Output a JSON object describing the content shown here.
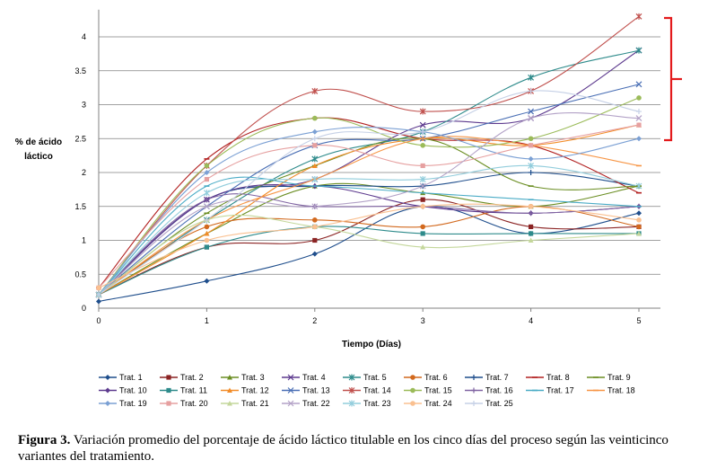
{
  "chart_data": {
    "type": "line",
    "x": [
      0,
      1,
      2,
      3,
      4,
      5
    ],
    "xlabel": "Tiempo (Días)",
    "ylabel_lines": [
      "% de ácido",
      "láctico"
    ],
    "xlim": [
      0,
      5.2
    ],
    "ylim": [
      0,
      4.4
    ],
    "yticks": [
      0,
      0.5,
      1,
      1.5,
      2,
      2.5,
      3,
      3.5,
      4
    ],
    "ytick_labels": [
      "0",
      "0.5",
      "1",
      "1.5",
      "2",
      "2.5",
      "3",
      "3.5",
      "4"
    ],
    "xtick_labels": [
      "0",
      "1",
      "2",
      "3",
      "4",
      "5"
    ],
    "grid": "horizontal",
    "legend_position": "bottom",
    "annotation": "bracket",
    "series": [
      {
        "name": "Trat. 1",
        "color": "#1F4E8C",
        "marker": "diamond",
        "values": [
          0.1,
          0.4,
          0.8,
          1.5,
          1.1,
          1.4
        ]
      },
      {
        "name": "Trat. 2",
        "color": "#8B2323",
        "marker": "square",
        "values": [
          0.2,
          0.9,
          1.0,
          1.6,
          1.2,
          1.2
        ]
      },
      {
        "name": "Trat. 3",
        "color": "#6B8E23",
        "marker": "triangle",
        "values": [
          0.2,
          1.1,
          1.8,
          1.7,
          1.5,
          1.8
        ]
      },
      {
        "name": "Trat. 4",
        "color": "#5D3A8E",
        "marker": "x",
        "values": [
          0.2,
          1.6,
          1.9,
          2.7,
          2.8,
          3.8
        ]
      },
      {
        "name": "Trat. 5",
        "color": "#2E8B8B",
        "marker": "star",
        "values": [
          0.2,
          1.3,
          2.2,
          2.6,
          3.4,
          3.8
        ]
      },
      {
        "name": "Trat. 6",
        "color": "#D2691E",
        "marker": "circle",
        "values": [
          0.2,
          1.2,
          1.3,
          1.2,
          1.5,
          1.2
        ]
      },
      {
        "name": "Trat. 7",
        "color": "#1F4E8C",
        "marker": "plus",
        "values": [
          0.2,
          1.6,
          1.8,
          1.8,
          2.0,
          1.8
        ]
      },
      {
        "name": "Trat. 8",
        "color": "#B22222",
        "marker": "dash",
        "values": [
          0.3,
          2.2,
          2.8,
          2.5,
          2.4,
          1.7
        ]
      },
      {
        "name": "Trat. 9",
        "color": "#6B8E23",
        "marker": "dash",
        "values": [
          0.2,
          1.4,
          2.1,
          2.5,
          1.8,
          1.8
        ]
      },
      {
        "name": "Trat. 10",
        "color": "#5D3A8E",
        "marker": "diamond",
        "values": [
          0.2,
          1.6,
          1.8,
          1.5,
          1.4,
          1.5
        ]
      },
      {
        "name": "Trat. 11",
        "color": "#2E8B8B",
        "marker": "square",
        "values": [
          0.2,
          0.9,
          1.2,
          1.1,
          1.1,
          1.1
        ]
      },
      {
        "name": "Trat. 12",
        "color": "#F28C28",
        "marker": "triangle",
        "values": [
          0.2,
          1.1,
          2.1,
          2.5,
          2.4,
          2.7
        ]
      },
      {
        "name": "Trat. 13",
        "color": "#4A6FB5",
        "marker": "x",
        "values": [
          0.2,
          1.5,
          2.4,
          2.5,
          2.9,
          3.3
        ]
      },
      {
        "name": "Trat. 14",
        "color": "#C0504D",
        "marker": "star",
        "values": [
          0.2,
          2.1,
          3.2,
          2.9,
          3.2,
          4.3
        ]
      },
      {
        "name": "Trat. 15",
        "color": "#9BBB59",
        "marker": "circle",
        "values": [
          0.2,
          2.1,
          2.8,
          2.4,
          2.5,
          3.1
        ]
      },
      {
        "name": "Trat. 16",
        "color": "#8064A2",
        "marker": "plus",
        "values": [
          0.2,
          1.6,
          1.5,
          1.5,
          1.4,
          1.5
        ]
      },
      {
        "name": "Trat. 17",
        "color": "#4BACC6",
        "marker": "dash",
        "values": [
          0.2,
          1.8,
          1.8,
          1.7,
          1.6,
          1.5
        ]
      },
      {
        "name": "Trat. 18",
        "color": "#F79646",
        "marker": "dash",
        "values": [
          0.2,
          1.3,
          1.9,
          2.5,
          2.4,
          2.1
        ]
      },
      {
        "name": "Trat. 19",
        "color": "#7BA0D4",
        "marker": "diamond",
        "values": [
          0.2,
          2.0,
          2.6,
          2.6,
          2.2,
          2.5
        ]
      },
      {
        "name": "Trat. 20",
        "color": "#E6A0A0",
        "marker": "square",
        "values": [
          0.3,
          1.9,
          2.4,
          2.1,
          2.4,
          2.7
        ]
      },
      {
        "name": "Trat. 21",
        "color": "#C4D79B",
        "marker": "triangle",
        "values": [
          0.2,
          1.3,
          1.2,
          0.9,
          1.0,
          1.1
        ]
      },
      {
        "name": "Trat. 22",
        "color": "#B3A2C7",
        "marker": "x",
        "values": [
          0.2,
          1.5,
          1.5,
          1.8,
          2.8,
          2.8
        ]
      },
      {
        "name": "Trat. 23",
        "color": "#92CDDC",
        "marker": "star",
        "values": [
          0.2,
          1.7,
          1.9,
          1.9,
          2.1,
          1.8
        ]
      },
      {
        "name": "Trat. 24",
        "color": "#FAC090",
        "marker": "circle",
        "values": [
          0.3,
          1.0,
          1.2,
          1.5,
          1.5,
          1.3
        ]
      },
      {
        "name": "Trat. 25",
        "color": "#C5D0E6",
        "marker": "plus",
        "values": [
          0.2,
          1.3,
          2.5,
          2.6,
          3.2,
          2.9
        ]
      }
    ]
  },
  "caption": {
    "label": "Figura 3.",
    "text": " Variación promedio del porcentaje de ácido láctico titulable en los cinco días del proceso según las veinticinco variantes del tratamiento."
  }
}
